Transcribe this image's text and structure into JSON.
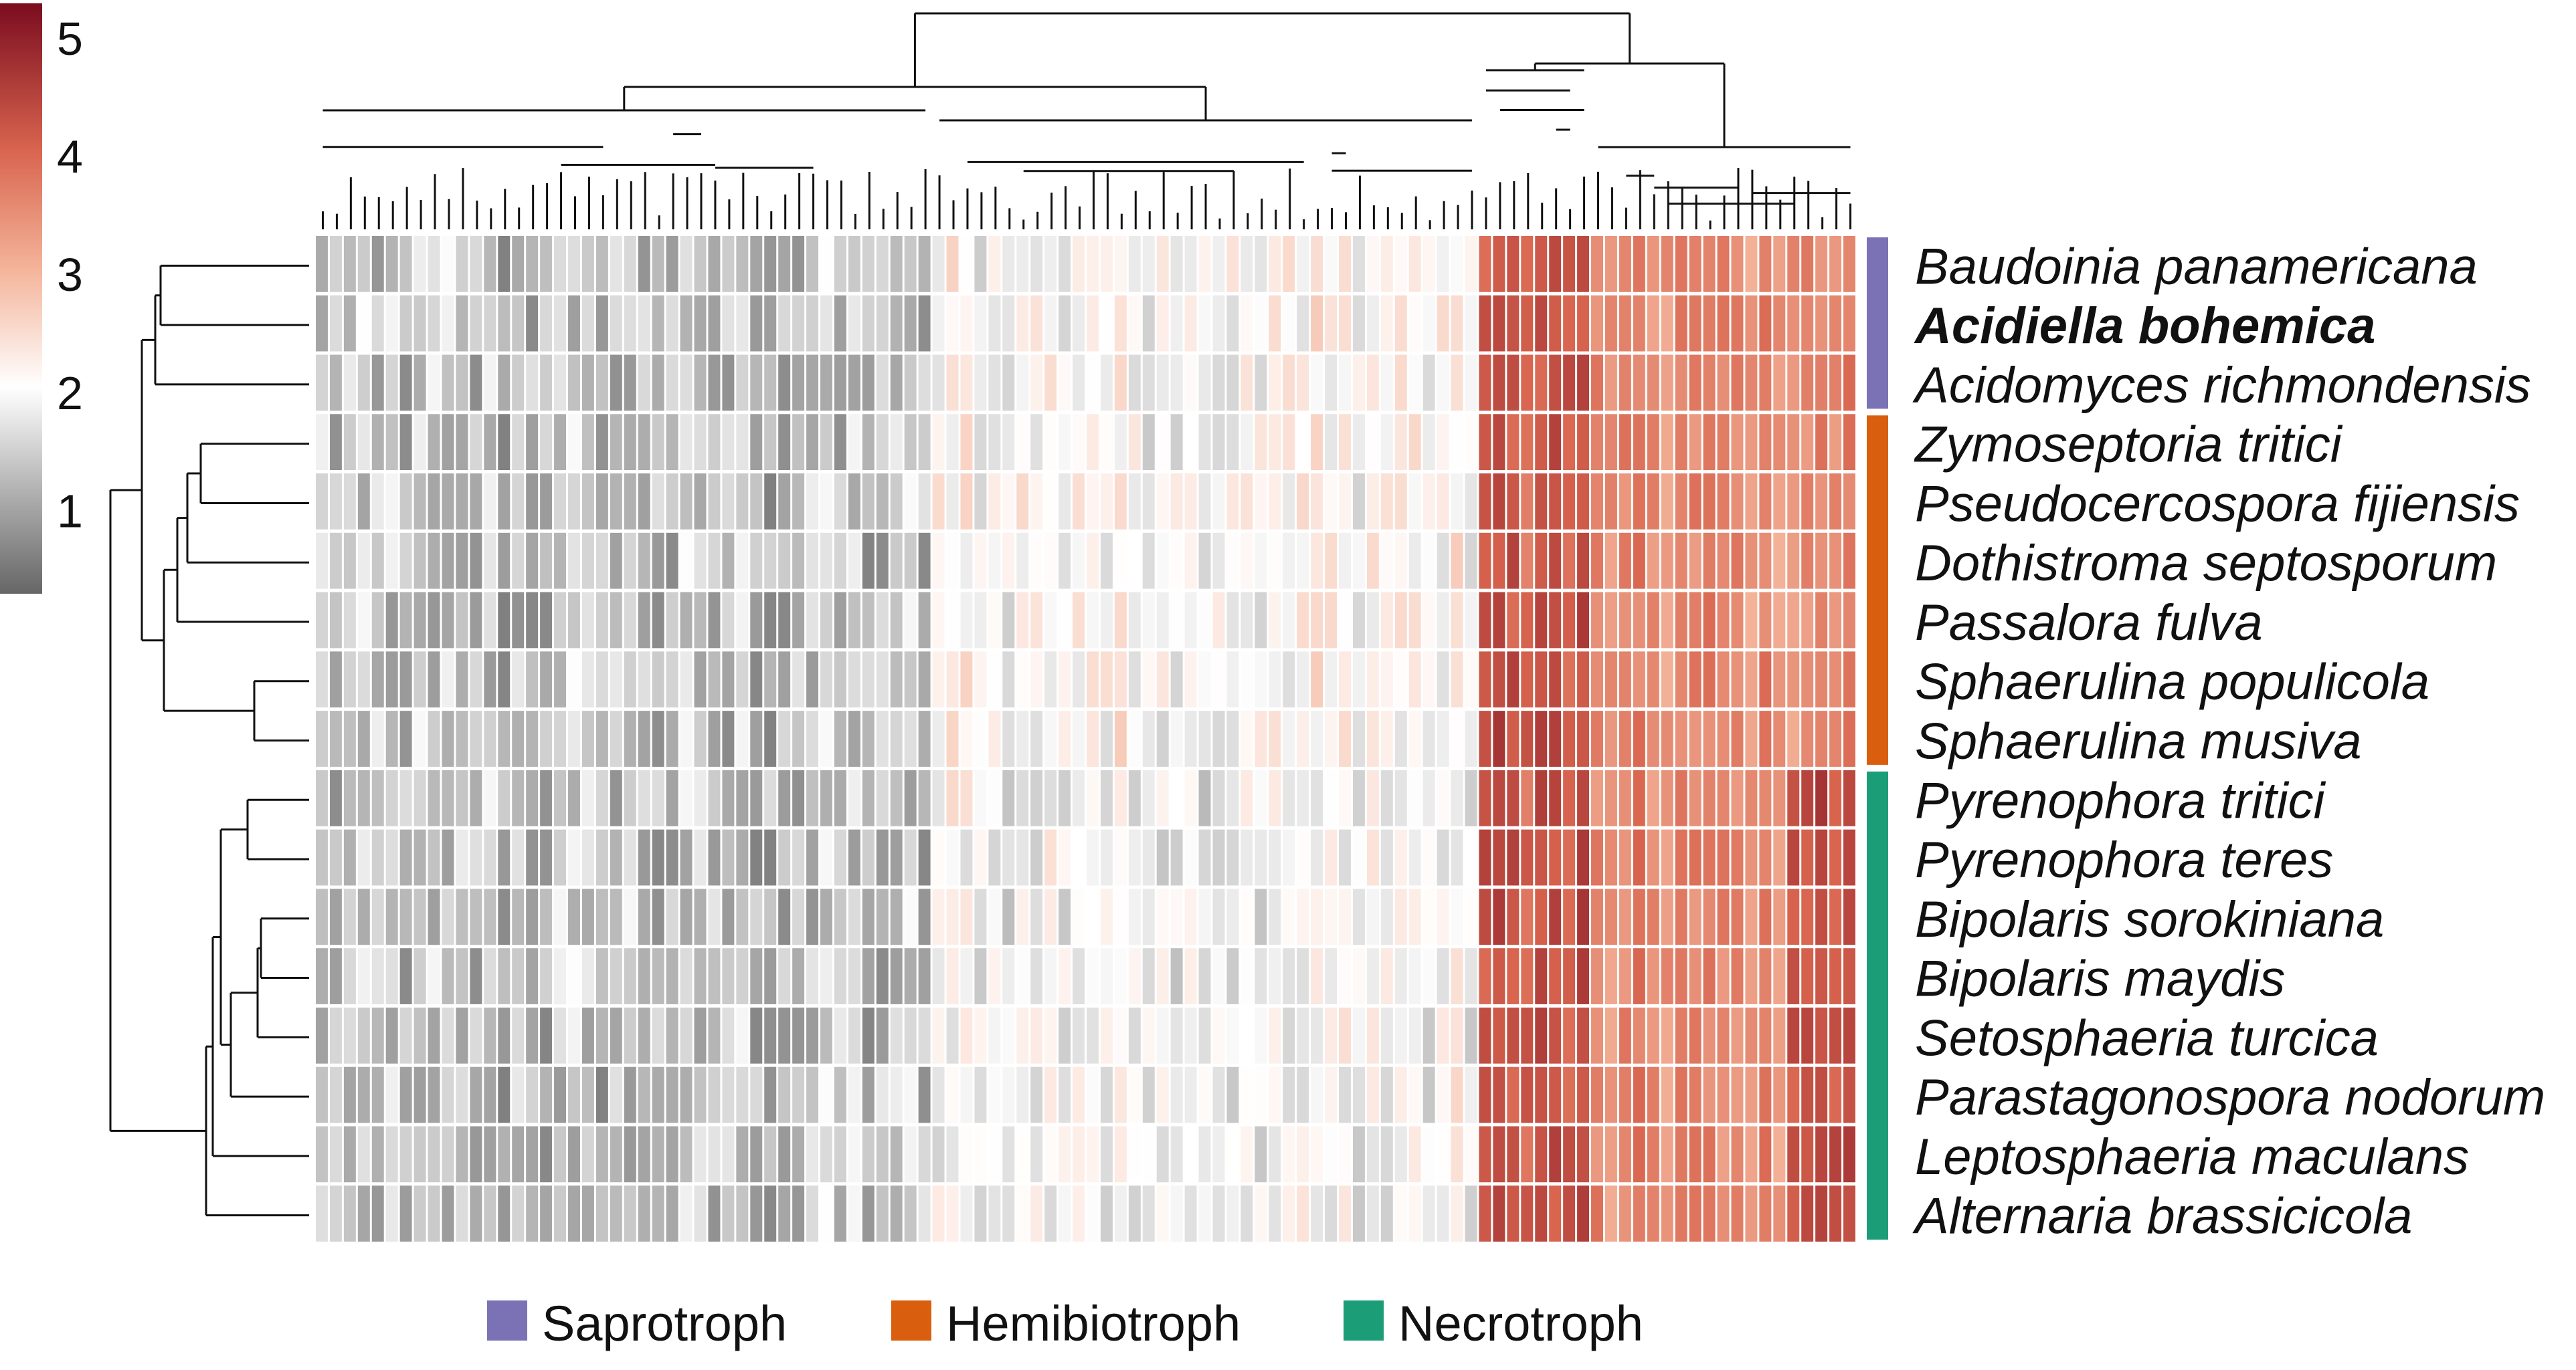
{
  "chart_data": {
    "type": "heatmap",
    "title": "",
    "colorbar": {
      "ticks": [
        "1",
        "2",
        "3",
        "4",
        "5"
      ],
      "range": [
        0.3,
        5.3
      ],
      "colors": {
        "low": "#666666",
        "mid": "#ffffff",
        "high": "#7a0c1f"
      }
    },
    "rows": [
      {
        "label": "Baudoinia panamericana",
        "bold": false,
        "group": "Saprotroph"
      },
      {
        "label": "Acidiella bohemica",
        "bold": true,
        "group": "Saprotroph"
      },
      {
        "label": "Acidomyces richmondensis",
        "bold": false,
        "group": "Saprotroph"
      },
      {
        "label": "Zymoseptoria tritici",
        "bold": false,
        "group": "Hemibiotroph"
      },
      {
        "label": "Pseudocercospora fijiensis",
        "bold": false,
        "group": "Hemibiotroph"
      },
      {
        "label": "Dothistroma septosporum",
        "bold": false,
        "group": "Hemibiotroph"
      },
      {
        "label": "Passalora fulva",
        "bold": false,
        "group": "Hemibiotroph"
      },
      {
        "label": "Sphaerulina populicola",
        "bold": false,
        "group": "Hemibiotroph"
      },
      {
        "label": "Sphaerulina musiva",
        "bold": false,
        "group": "Hemibiotroph"
      },
      {
        "label": "Pyrenophora tritici",
        "bold": false,
        "group": "Necrotroph"
      },
      {
        "label": "Pyrenophora teres",
        "bold": false,
        "group": "Necrotroph"
      },
      {
        "label": "Bipolaris sorokiniana",
        "bold": false,
        "group": "Necrotroph"
      },
      {
        "label": "Bipolaris maydis",
        "bold": false,
        "group": "Necrotroph"
      },
      {
        "label": "Setosphaeria turcica",
        "bold": false,
        "group": "Necrotroph"
      },
      {
        "label": "Parastagonospora nodorum",
        "bold": false,
        "group": "Necrotroph"
      },
      {
        "label": "Leptosphaeria maculans",
        "bold": false,
        "group": "Necrotroph"
      },
      {
        "label": "Alternaria brassicicola",
        "bold": false,
        "group": "Necrotroph"
      }
    ],
    "n_columns": 110,
    "column_blocks": [
      {
        "name": "low-grey",
        "count": 44,
        "base": 1.3,
        "spread": 0.55
      },
      {
        "name": "near-white",
        "count": 39,
        "base": 2.1,
        "spread": 0.45
      },
      {
        "name": "dark-red",
        "count": 8,
        "base": 4.2,
        "spread": 0.35
      },
      {
        "name": "salmon",
        "count": 19,
        "base": 3.5,
        "spread": 0.3
      }
    ],
    "groups": [
      {
        "name": "Saprotroph",
        "color": "#7b72b5"
      },
      {
        "name": "Hemibiotroph",
        "color": "#d95f0e"
      },
      {
        "name": "Necrotroph",
        "color": "#1b9e77"
      }
    ],
    "legend": [
      {
        "label": "Saprotroph",
        "color": "#7b72b5"
      },
      {
        "label": "Hemibiotroph",
        "color": "#d95f0e"
      },
      {
        "label": "Necrotroph",
        "color": "#1b9e77"
      }
    ]
  }
}
